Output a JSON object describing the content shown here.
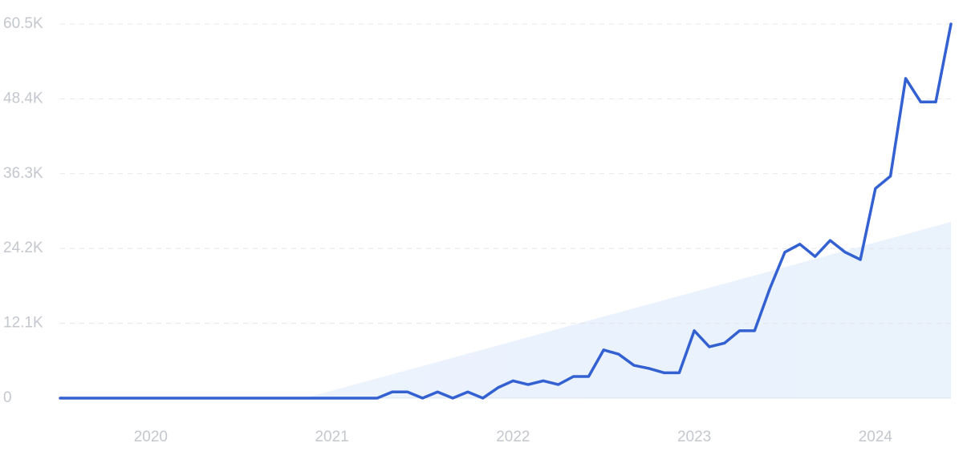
{
  "chart_data": {
    "type": "line",
    "xlim": [
      2019.5,
      2024.417
    ],
    "xticks": [
      2020,
      2021,
      2022,
      2023,
      2024
    ],
    "ylim": [
      0,
      60500
    ],
    "yticks": [
      0,
      {
        "value": 12100,
        "label": "12.1K"
      },
      {
        "value": 24200,
        "label": "24.2K"
      },
      {
        "value": 36300,
        "label": "36.3K"
      },
      {
        "value": 48400,
        "label": "48.4K"
      },
      {
        "value": 60500,
        "label": "60.5K"
      }
    ],
    "grid": true,
    "series": [
      {
        "color": "#3461d1",
        "x": [
          2019.5,
          2019.583,
          2019.667,
          2019.75,
          2019.833,
          2019.917,
          2020,
          2020.083,
          2020.167,
          2020.25,
          2020.333,
          2020.417,
          2020.5,
          2020.583,
          2020.667,
          2020.75,
          2020.833,
          2020.917,
          2021,
          2021.083,
          2021.167,
          2021.25,
          2021.333,
          2021.417,
          2021.5,
          2021.583,
          2021.667,
          2021.75,
          2021.833,
          2021.917,
          2022,
          2022.083,
          2022.167,
          2022.25,
          2022.333,
          2022.417,
          2022.5,
          2022.583,
          2022.667,
          2022.75,
          2022.833,
          2022.917,
          2023,
          2023.083,
          2023.167,
          2023.25,
          2023.333,
          2023.417,
          2023.5,
          2023.583,
          2023.667,
          2023.75,
          2023.833,
          2023.917,
          2024,
          2024.083,
          2024.167,
          2024.25,
          2024.333,
          2024.417
        ],
        "values": [
          0,
          0,
          0,
          0,
          0,
          0,
          0,
          0,
          0,
          0,
          0,
          0,
          0,
          0,
          0,
          0,
          0,
          0,
          0,
          0,
          0,
          0,
          1000,
          1000,
          0,
          1000,
          0,
          1000,
          0,
          1700,
          2800,
          2200,
          2800,
          2200,
          3500,
          3500,
          7800,
          7100,
          5300,
          4800,
          4100,
          4100,
          10900,
          8300,
          8900,
          10900,
          10900,
          17700,
          23600,
          24900,
          22900,
          25500,
          23600,
          22400,
          33900,
          35900,
          51700,
          47900,
          47900,
          60500
        ]
      }
    ],
    "trend": {
      "x": [
        2020.85,
        2024.417
      ],
      "values": [
        0,
        28500
      ],
      "color": "#dce9fb"
    }
  }
}
